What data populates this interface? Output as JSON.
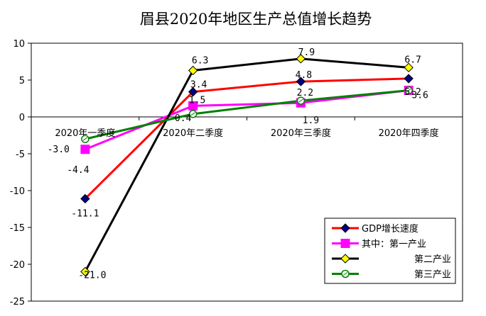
{
  "chart_data": {
    "type": "line",
    "title": "眉县2020年地区生产总值增长趋势",
    "categories": [
      "2020年一季度",
      "2020年二季度",
      "2020年三季度",
      "2020年四季度"
    ],
    "ylim": [
      -25,
      10
    ],
    "yticks": [
      -25,
      -20,
      -15,
      -10,
      -5,
      0,
      5,
      10
    ],
    "grid": false,
    "legend_position": "bottom-right",
    "series": [
      {
        "name": "GDP增长速度",
        "values": [
          -11.1,
          3.4,
          4.8,
          5.2
        ],
        "labels": [
          "-11.1",
          "3.4",
          "4.8",
          "5.2"
        ],
        "color": "#ff0000",
        "marker": "diamond",
        "marker_color": "#000080"
      },
      {
        "name": "其中：第一产业",
        "values": [
          -4.4,
          1.5,
          1.9,
          3.6
        ],
        "labels": [
          "-4.4",
          "1.5",
          "1.9",
          "3.6"
        ],
        "color": "#ff00ff",
        "marker": "square",
        "marker_color": "#ff00ff"
      },
      {
        "name": "第二产业",
        "values": [
          -21.0,
          6.3,
          7.9,
          6.7
        ],
        "labels": [
          "-21.0",
          "6.3",
          "7.9",
          "6.7"
        ],
        "color": "#000000",
        "marker": "diamond",
        "marker_color": "#ffff00"
      },
      {
        "name": "第三产业",
        "values": [
          -3.0,
          0.4,
          2.2,
          3.6
        ],
        "labels": [
          "-3.0",
          "0.4",
          "2.2",
          ""
        ],
        "color": "#008000",
        "marker": "circle",
        "marker_color": "#ffffff"
      }
    ]
  }
}
